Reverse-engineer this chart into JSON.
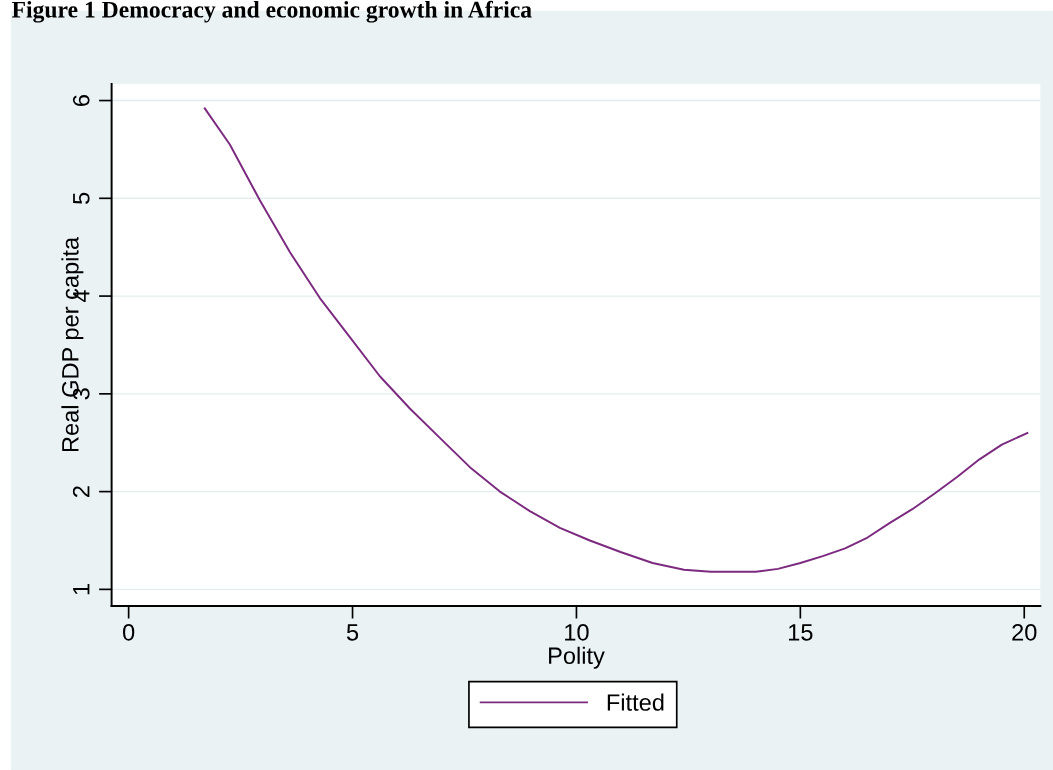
{
  "chart_data": {
    "type": "line",
    "title": "Figure 1 Democracy and economic growth in Africa",
    "xlabel": "Polity",
    "ylabel": "Real GDP per capita",
    "xlim": [
      -0.38,
      20.36
    ],
    "ylim": [
      0.83,
      6.17
    ],
    "xticks": [
      0,
      5,
      10,
      15,
      20
    ],
    "yticks": [
      1,
      2,
      3,
      4,
      5,
      6
    ],
    "grid": "y",
    "legend": "bottom",
    "marker": "none",
    "line_style": "solid",
    "series": [
      {
        "name": "Fitted",
        "color": "#7b2a7f",
        "x": [
          1.7,
          2.26,
          2.93,
          3.6,
          4.27,
          4.94,
          5.61,
          6.28,
          6.95,
          7.62,
          8.29,
          8.96,
          9.63,
          10.3,
          11,
          11.7,
          12.4,
          13,
          13.6,
          14,
          14.5,
          15,
          15.5,
          16,
          16.5,
          17,
          17.5,
          18,
          18.5,
          19,
          19.5,
          20.07
        ],
        "values": [
          5.92,
          5.55,
          4.98,
          4.45,
          3.98,
          3.58,
          3.18,
          2.85,
          2.55,
          2.25,
          2.0,
          1.8,
          1.63,
          1.5,
          1.38,
          1.27,
          1.2,
          1.18,
          1.18,
          1.18,
          1.21,
          1.27,
          1.34,
          1.42,
          1.53,
          1.68,
          1.82,
          1.98,
          2.15,
          2.33,
          2.48,
          2.6
        ]
      }
    ]
  }
}
